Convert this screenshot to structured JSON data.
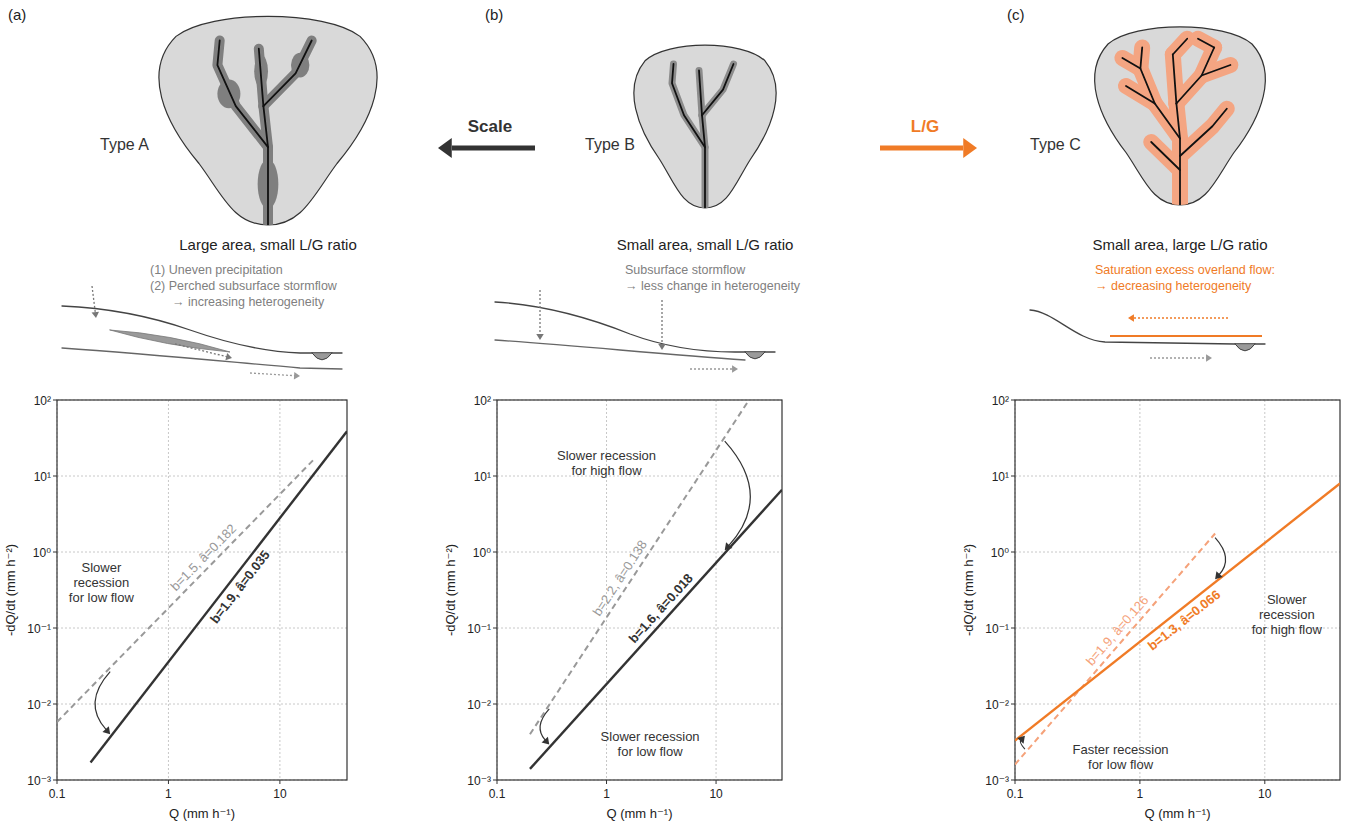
{
  "diagrams": {
    "panels": [
      {
        "letter": "(a)",
        "type_label": "Type A",
        "caption": "Large area, small L/G ratio",
        "process": [
          "(1) Uneven precipitation",
          "(2) Perched subsurface stormflow",
          "→ increasing  heterogeneity"
        ]
      },
      {
        "letter": "(b)",
        "type_label": "Type B",
        "caption": "Small area, small L/G ratio",
        "process": [
          "Subsurface stormflow",
          "→ less change in heterogeneity"
        ]
      },
      {
        "letter": "(c)",
        "type_label": "Type C",
        "caption": "Small area, large L/G ratio",
        "process": [
          "Saturation excess overland flow:",
          "→ decreasing heterogeneity"
        ]
      }
    ],
    "arrows": [
      {
        "label": "Scale"
      },
      {
        "label": "L/G"
      }
    ]
  },
  "chart_data": [
    {
      "type": "line",
      "log": true,
      "grid": true,
      "xlim": [
        0.1,
        40
      ],
      "ylim": [
        0.001,
        100
      ],
      "xticks": [
        0.1,
        1,
        10
      ],
      "yticks": [
        {
          "value": 0.001,
          "label": "10⁻³"
        },
        {
          "value": 0.01,
          "label": "10⁻²"
        },
        {
          "value": 0.1,
          "label": "10⁻¹"
        },
        {
          "value": 1,
          "label": "10⁰"
        },
        {
          "value": 10,
          "label": "10¹"
        },
        {
          "value": 100,
          "label": "10²"
        }
      ],
      "x_label": "Q (mm h⁻¹)",
      "y_label": "-dQ/dt (mm h⁻²)",
      "series": [
        {
          "name": "b=1.5, â=0.182",
          "color": "#999999",
          "line_style": "dashed",
          "x": [
            0.1,
            20
          ],
          "values": [
            0.0058,
            16.3
          ]
        },
        {
          "name": "b=1.9, â=0.035",
          "color": "#333333",
          "line_style": "solid",
          "x": [
            0.2,
            40
          ],
          "values": [
            0.0017,
            38.7
          ]
        }
      ],
      "annotations": [
        {
          "text": [
            "Slower",
            "recession",
            "for low flow"
          ],
          "x": 0.25,
          "y": 0.4,
          "arrow_x": 0.3
        }
      ]
    },
    {
      "type": "line",
      "log": true,
      "grid": true,
      "xlim": [
        0.1,
        40
      ],
      "ylim": [
        0.001,
        100
      ],
      "xticks": [
        0.1,
        1,
        10
      ],
      "yticks": [
        {
          "value": 0.001,
          "label": "10⁻³"
        },
        {
          "value": 0.01,
          "label": "10⁻²"
        },
        {
          "value": 0.1,
          "label": "10⁻¹"
        },
        {
          "value": 1,
          "label": "10⁰"
        },
        {
          "value": 10,
          "label": "10¹"
        },
        {
          "value": 100,
          "label": "10²"
        }
      ],
      "x_label": "Q (mm h⁻¹)",
      "y_label": "-dQ/dt (mm h⁻²)",
      "series": [
        {
          "name": "b=2.2, â=0.138",
          "color": "#999999",
          "line_style": "dashed",
          "x": [
            0.2,
            20
          ],
          "values": [
            0.004,
            100
          ]
        },
        {
          "name": "b=1.6, â=0.018",
          "color": "#333333",
          "line_style": "solid",
          "x": [
            0.2,
            40
          ],
          "values": [
            0.0014,
            6.6
          ]
        }
      ],
      "annotations": [
        {
          "text": [
            "Slower recession",
            "for high flow"
          ],
          "x": 1,
          "y": 15,
          "arrow_x": 12
        },
        {
          "text": [
            "Slower recession",
            "for low flow"
          ],
          "x": 2.5,
          "y": 0.003,
          "arrow_x": 0.3
        }
      ]
    },
    {
      "type": "line",
      "log": true,
      "grid": true,
      "xlim": [
        0.1,
        40
      ],
      "ylim": [
        0.001,
        100
      ],
      "xticks": [
        0.1,
        1,
        10
      ],
      "yticks": [
        {
          "value": 0.001,
          "label": "10⁻³"
        },
        {
          "value": 0.01,
          "label": "10⁻²"
        },
        {
          "value": 0.1,
          "label": "10⁻¹"
        },
        {
          "value": 1,
          "label": "10⁰"
        },
        {
          "value": 10,
          "label": "10¹"
        },
        {
          "value": 100,
          "label": "10²"
        }
      ],
      "x_label": "Q (mm h⁻¹)",
      "y_label": "-dQ/dt (mm h⁻²)",
      "series": [
        {
          "name": "b=1.9, â=0.126",
          "color": "#f5a27a",
          "line_style": "dashed",
          "x": [
            0.1,
            4
          ],
          "values": [
            0.0016,
            1.75
          ]
        },
        {
          "name": "b=1.3, â=0.066",
          "color": "#f07b26",
          "line_style": "solid",
          "x": [
            0.1,
            40
          ],
          "values": [
            0.0033,
            8.0
          ]
        }
      ],
      "annotations": [
        {
          "text": [
            "Slower",
            "recession",
            "for high flow"
          ],
          "x": 15,
          "y": 0.15,
          "arrow_x": 4
        },
        {
          "text": [
            "Faster recession",
            "for low flow"
          ],
          "x": 0.7,
          "y": 0.002,
          "arrow_x": 0.12
        }
      ]
    }
  ]
}
